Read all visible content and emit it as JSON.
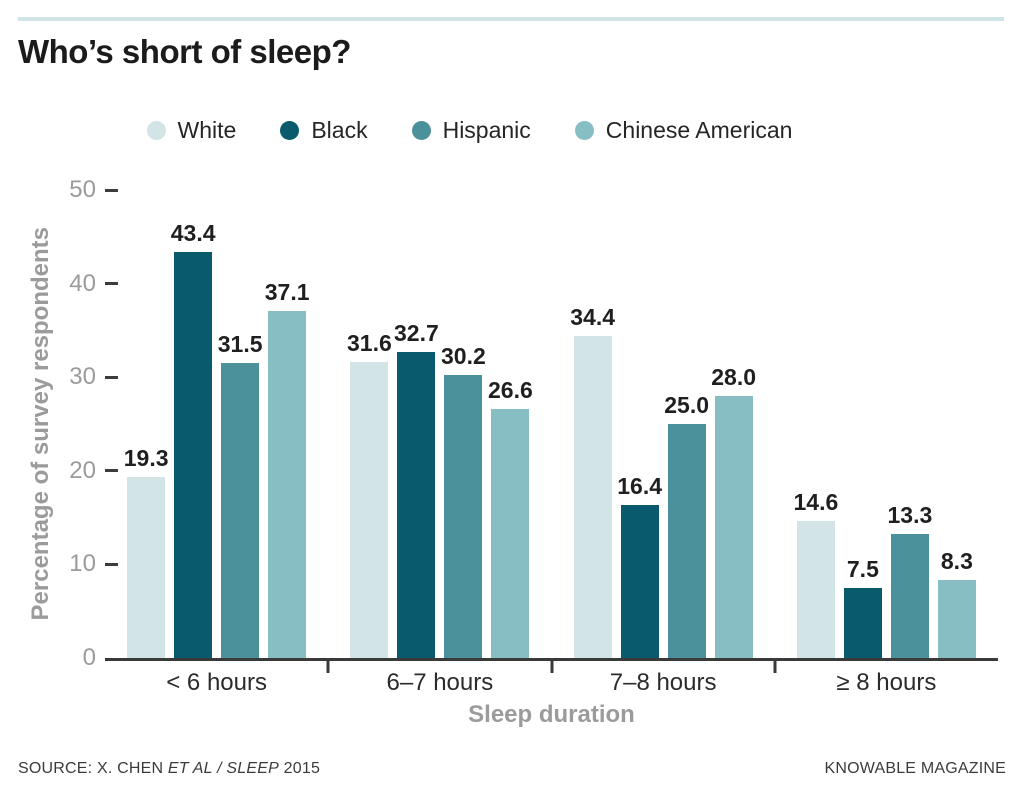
{
  "page": {
    "title": "Who’s short of sleep?",
    "source_prefix": "SOURCE: X. CHEN ",
    "source_italic": "ET AL / SLEEP",
    "source_suffix": " 2015",
    "credit": "KNOWABLE MAGAZINE"
  },
  "colors": {
    "accent_line": "#cfe4e6",
    "axis": "#3a3a3a",
    "muted_text": "#9b9b9b",
    "dark_text": "#1b1b1b"
  },
  "chart_data": {
    "type": "bar",
    "title": "Who’s short of sleep?",
    "categories": [
      "< 6 hours",
      "6–7 hours",
      "7–8 hours",
      "≥ 8 hours"
    ],
    "series": [
      {
        "name": "White",
        "color": "#d2e4e6",
        "values": [
          19.3,
          31.6,
          34.4,
          14.6
        ]
      },
      {
        "name": "Black",
        "color": "#0a5a6e",
        "values": [
          43.4,
          32.7,
          16.4,
          7.5
        ]
      },
      {
        "name": "Hispanic",
        "color": "#4b919b",
        "values": [
          31.5,
          30.2,
          25.0,
          13.3
        ]
      },
      {
        "name": "Chinese American",
        "color": "#87bec3",
        "values": [
          37.1,
          26.6,
          28.0,
          8.3
        ]
      }
    ],
    "xlabel": "Sleep duration",
    "ylabel": "Percentage of survey respondents",
    "ylim": [
      0,
      50
    ],
    "yticks": [
      0,
      10,
      20,
      30,
      40,
      50
    ],
    "value_label_decimals": 1,
    "legend_position": "top",
    "grid": false
  }
}
